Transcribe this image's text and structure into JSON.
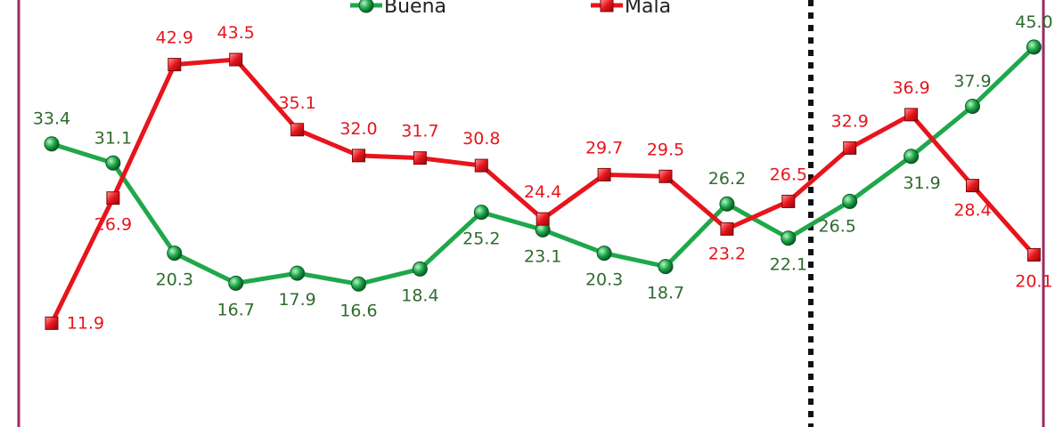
{
  "chart_data": {
    "type": "line",
    "title": "",
    "xlabel": "",
    "ylabel": "",
    "ylim": [
      0,
      50
    ],
    "grid": false,
    "legend": "top-center",
    "x": [
      1,
      2,
      3,
      4,
      5,
      6,
      7,
      8,
      9,
      10,
      11,
      12,
      13,
      14,
      15,
      16,
      17
    ],
    "series": [
      {
        "name": "Buena",
        "color": "#1fa84a",
        "marker": "circle",
        "values": [
          33.4,
          31.1,
          20.3,
          16.7,
          17.9,
          16.6,
          18.4,
          25.2,
          23.1,
          20.3,
          18.7,
          26.2,
          22.1,
          26.5,
          31.9,
          37.9,
          45.0
        ],
        "labels": [
          "33.4",
          "31.1",
          "20.3",
          "16.7",
          "17.9",
          "16.6",
          "18.4",
          "25.2",
          "23.1",
          "20.3",
          "18.7",
          "26.2",
          "22.1",
          "26.5",
          "31.9",
          "37.9",
          "45.0"
        ]
      },
      {
        "name": "Mala",
        "color": "#e8141c",
        "marker": "square",
        "values": [
          11.9,
          26.9,
          42.9,
          43.5,
          35.1,
          32.0,
          31.7,
          30.8,
          24.4,
          29.7,
          29.5,
          23.2,
          26.5,
          32.9,
          36.9,
          28.4,
          20.1
        ],
        "labels": [
          "11.9",
          "26.9",
          "42.9",
          "43.5",
          "35.1",
          "32.0",
          "31.7",
          "30.8",
          "24.4",
          "29.7",
          "29.5",
          "23.2",
          "26.5",
          "32.9",
          "36.9",
          "28.4",
          "20.1"
        ]
      }
    ],
    "divider_after_index": 12
  },
  "colors": {
    "frame": "#9b2a63",
    "buena": "#1fa84a",
    "mala": "#e8141c",
    "buena_label": "#2f6b2f",
    "mala_label": "#e8141c"
  }
}
